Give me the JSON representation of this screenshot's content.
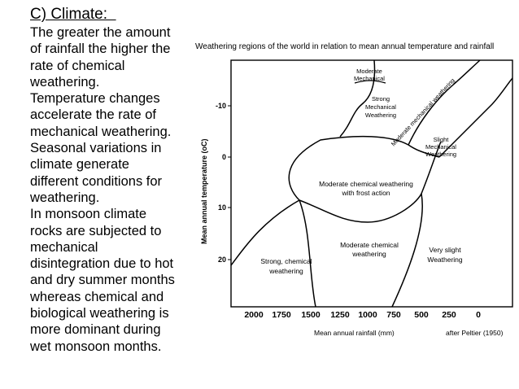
{
  "slide": {
    "heading": "C) Climate:  ",
    "body_lines": [
      "The greater the amount",
      "of rainfall the higher the",
      "rate of chemical",
      "weathering.",
      "Temperature changes",
      "accelerate the rate of",
      "mechanical weathering.",
      "Seasonal variations in",
      "climate generate",
      "different conditions for",
      "weathering.",
      "In monsoon climate",
      "rocks are subjected to",
      "mechanical",
      "disintegration due to hot",
      "and dry summer months",
      "whereas chemical and",
      "biological weathering is",
      "more dominant during",
      "wet monsoon months."
    ]
  },
  "diagram": {
    "title": "Weathering regions of the world in relation to mean annual temperature and rainfall",
    "y_axis_label": "Mean annual temperature (oC)",
    "x_axis_label": "Mean annual rainfall (mm)",
    "credit": "after Peltier (1950)",
    "y_ticks": [
      "-10",
      "0",
      "10",
      "20"
    ],
    "x_ticks": [
      "2000",
      "1750",
      "1500",
      "1250",
      "1000",
      "750",
      "500",
      "250",
      "0"
    ],
    "regions": {
      "moderate_mechanical": [
        "Moderate",
        "Mechanical"
      ],
      "strong_mechanical": [
        "Strong",
        "Mechanical",
        "Weathering"
      ],
      "moderate_mechanical_diagonal": "Moderate mechanical weathering",
      "slight_mechanical": [
        "Slight",
        "Mechanical",
        "Weathering"
      ],
      "moderate_chemical_frost": [
        "Moderate chemical weathering",
        "with frost action"
      ],
      "moderate_chemical": [
        "Moderate chemical",
        "weathering"
      ],
      "very_slight": [
        "Very slight",
        "Weathering"
      ],
      "strong_chemical": [
        "Strong, chemical",
        "weathering"
      ]
    }
  }
}
